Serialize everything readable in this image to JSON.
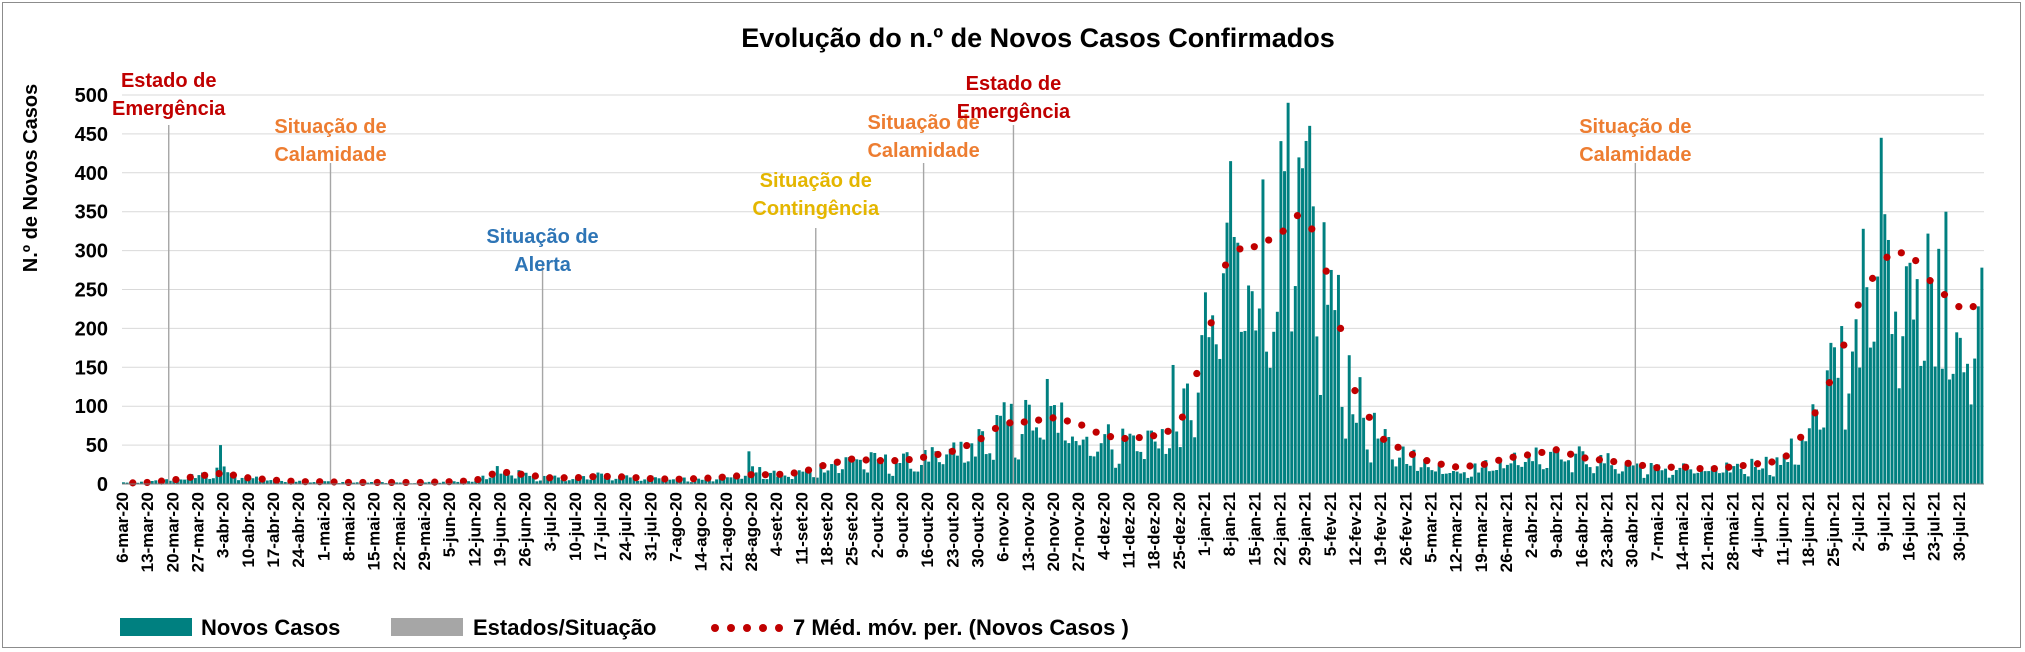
{
  "chart_data": {
    "type": "bar",
    "title": "Evolução do n.º de Novos Casos Confirmados",
    "ylabel": "N.º de Novos Casos",
    "ylim": [
      0,
      500
    ],
    "yticks": [
      0,
      50,
      100,
      150,
      200,
      250,
      300,
      350,
      400,
      450,
      500
    ],
    "grid": true,
    "legend_position": "bottom-left",
    "start_date": "2020-03-06",
    "end_date": "2021-08-05",
    "x_tick_labels": [
      "6-mar-20",
      "13-mar-20",
      "20-mar-20",
      "27-mar-20",
      "3-abr-20",
      "10-abr-20",
      "17-abr-20",
      "24-abr-20",
      "1-mai-20",
      "8-mai-20",
      "15-mai-20",
      "22-mai-20",
      "29-mai-20",
      "5-jun-20",
      "12-jun-20",
      "19-jun-20",
      "26-jun-20",
      "3-jul-20",
      "10-jul-20",
      "17-jul-20",
      "24-jul-20",
      "31-jul-20",
      "7-ago-20",
      "14-ago-20",
      "21-ago-20",
      "28-ago-20",
      "4-set-20",
      "11-set-20",
      "18-set-20",
      "25-set-20",
      "2-out-20",
      "9-out-20",
      "16-out-20",
      "23-out-20",
      "30-out-20",
      "6-nov-20",
      "13-nov-20",
      "20-nov-20",
      "27-nov-20",
      "4-dez-20",
      "11-dez-20",
      "18-dez-20",
      "25-dez-20",
      "1-jan-21",
      "8-jan-21",
      "15-jan-21",
      "22-jan-21",
      "29-jan-21",
      "5-fev-21",
      "12-fev-21",
      "19-fev-21",
      "26-fev-21",
      "5-mar-21",
      "12-mar-21",
      "19-mar-21",
      "26-mar-21",
      "2-abr-21",
      "9-abr-21",
      "16-abr-21",
      "23-abr-21",
      "30-abr-21",
      "7-mai-21",
      "14-mai-21",
      "21-mai-21",
      "28-mai-21",
      "4-jun-21",
      "11-jun-21",
      "18-jun-21",
      "25-jun-21",
      "2-jul-21",
      "9-jul-21",
      "16-jul-21",
      "23-jul-21",
      "30-jul-21"
    ],
    "series": [
      {
        "name": "Novos Casos",
        "type": "bar",
        "color": "#008080",
        "weekly_values": [
          2,
          3,
          6,
          12,
          18,
          8,
          5,
          4,
          4,
          3,
          2,
          2,
          2,
          3,
          4,
          20,
          12,
          8,
          8,
          12,
          10,
          8,
          6,
          8,
          10,
          18,
          12,
          16,
          25,
          35,
          30,
          30,
          35,
          42,
          55,
          80,
          85,
          90,
          75,
          60,
          60,
          65,
          75,
          190,
          320,
          310,
          330,
          360,
          250,
          110,
          55,
          40,
          25,
          20,
          22,
          35,
          38,
          50,
          35,
          30,
          25,
          20,
          22,
          18,
          22,
          28,
          30,
          80,
          150,
          240,
          300,
          320,
          250,
          220
        ],
        "peak_values": [
          {
            "date": "2020-04-02",
            "value": 50
          },
          {
            "date": "2020-08-27",
            "value": 42
          },
          {
            "date": "2020-11-18",
            "value": 135
          },
          {
            "date": "2020-12-23",
            "value": 153
          },
          {
            "date": "2021-01-08",
            "value": 415
          },
          {
            "date": "2021-01-24",
            "value": 490
          },
          {
            "date": "2021-07-08",
            "value": 445
          },
          {
            "date": "2021-07-26",
            "value": 350
          }
        ]
      },
      {
        "name": "7 Méd. móv. per. (Novos Casos )",
        "type": "line",
        "color": "#c00000",
        "weekly_values": [
          1,
          2,
          5,
          10,
          14,
          8,
          5,
          3,
          3,
          2,
          2,
          2,
          2,
          3,
          4,
          16,
          12,
          8,
          8,
          10,
          9,
          7,
          6,
          7,
          9,
          12,
          12,
          15,
          25,
          32,
          30,
          30,
          35,
          42,
          55,
          78,
          80,
          85,
          78,
          62,
          58,
          62,
          72,
          170,
          300,
          305,
          320,
          355,
          260,
          120,
          60,
          42,
          28,
          22,
          24,
          33,
          38,
          44,
          34,
          30,
          26,
          21,
          22,
          19,
          22,
          26,
          30,
          72,
          140,
          230,
          290,
          300,
          255,
          228
        ]
      },
      {
        "name": "Estados/Situação",
        "type": "marker",
        "color": "#a6a6a6"
      }
    ],
    "annotations": [
      {
        "date": "2020-03-19",
        "lines": [
          "Estado de",
          "Emergência"
        ],
        "color": "#c00000"
      },
      {
        "date": "2020-05-03",
        "lines": [
          "Situação de",
          "Calamidade"
        ],
        "color": "#ed7d31"
      },
      {
        "date": "2020-07-01",
        "lines": [
          "Situação de",
          "Alerta"
        ],
        "color": "#2e75b6"
      },
      {
        "date": "2020-09-15",
        "lines": [
          "Situação de",
          "Contingência"
        ],
        "color": "#e4b600"
      },
      {
        "date": "2020-10-15",
        "lines": [
          "Situação de",
          "Calamidade"
        ],
        "color": "#ed7d31"
      },
      {
        "date": "2020-11-09",
        "lines": [
          "Estado de",
          "Emergência"
        ],
        "color": "#c00000"
      },
      {
        "date": "2021-05-01",
        "lines": [
          "Situação de",
          "Calamidade"
        ],
        "color": "#ed7d31"
      }
    ]
  }
}
